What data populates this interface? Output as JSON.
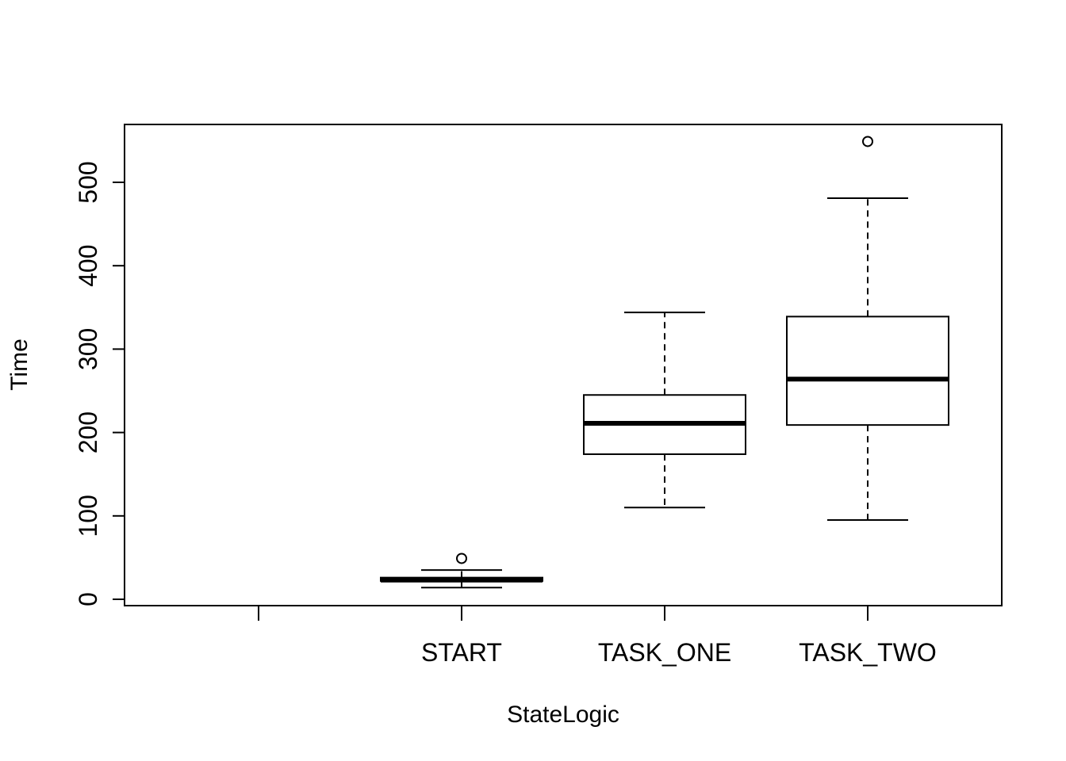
{
  "chart_data": {
    "type": "box",
    "categories": [
      "",
      "START",
      "TASK_ONE",
      "TASK_TWO"
    ],
    "boxes": [
      null,
      {
        "category": "START",
        "whisker_low": 14,
        "q1": 22,
        "median": 23,
        "q3": 26,
        "whisker_high": 35,
        "outliers": [
          49
        ]
      },
      {
        "category": "TASK_ONE",
        "whisker_low": 110,
        "q1": 174,
        "median": 211,
        "q3": 245,
        "whisker_high": 344,
        "outliers": []
      },
      {
        "category": "TASK_TWO",
        "whisker_low": 95,
        "q1": 209,
        "median": 264,
        "q3": 339,
        "whisker_high": 481,
        "outliers": [
          549
        ]
      }
    ],
    "xlabel": "StateLogic",
    "ylabel": "Time",
    "yticks": [
      0,
      100,
      200,
      300,
      400,
      500
    ],
    "ylim": [
      -7,
      569
    ],
    "grid": false,
    "colors": {
      "box_fill": "#ffffff",
      "stroke": "#000000"
    }
  }
}
